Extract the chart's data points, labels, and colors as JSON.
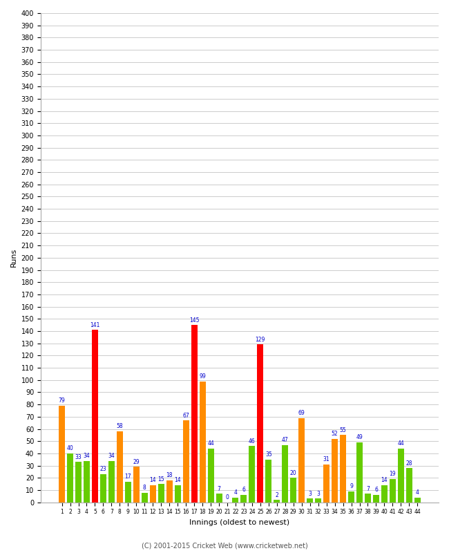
{
  "innings": [
    1,
    2,
    3,
    4,
    5,
    6,
    7,
    8,
    9,
    10,
    11,
    12,
    13,
    14,
    15,
    16,
    17,
    18,
    19,
    20,
    21,
    22,
    23,
    24,
    25,
    26,
    27,
    28,
    29,
    30,
    31,
    32,
    33,
    34,
    35,
    36,
    37,
    38,
    39,
    40,
    41,
    42,
    43,
    44
  ],
  "scores": [
    79,
    40,
    33,
    34,
    141,
    23,
    34,
    58,
    17,
    29,
    8,
    14,
    15,
    18,
    14,
    67,
    145,
    99,
    44,
    7,
    0,
    4,
    6,
    46,
    129,
    35,
    2,
    47,
    20,
    69,
    3,
    3,
    31,
    52,
    55,
    9,
    49,
    7,
    6,
    14,
    19,
    44,
    28,
    4
  ],
  "colors": [
    "orange",
    "green",
    "green",
    "green",
    "red",
    "green",
    "green",
    "orange",
    "green",
    "orange",
    "green",
    "orange",
    "green",
    "orange",
    "green",
    "orange",
    "red",
    "orange",
    "green",
    "green",
    "green",
    "green",
    "green",
    "green",
    "red",
    "green",
    "green",
    "green",
    "green",
    "orange",
    "green",
    "green",
    "orange",
    "orange",
    "orange",
    "green",
    "green",
    "green",
    "green",
    "green",
    "green",
    "green",
    "green",
    "green"
  ],
  "xlabel": "Innings (oldest to newest)",
  "ylabel": "Runs",
  "ylim": [
    0,
    400
  ],
  "ytick_step": 10,
  "footer": "(C) 2001-2015 Cricket Web (www.cricketweb.net)",
  "bg_color": "#ffffff",
  "grid_color": "#cccccc",
  "label_color": "#0000cc",
  "orange_color": "#FF8C00",
  "red_color": "#FF0000",
  "green_color": "#66CC00",
  "bar_width": 0.75,
  "fig_width": 6.5,
  "fig_height": 8.0,
  "dpi": 100,
  "ylabel_fontsize": 8,
  "xlabel_fontsize": 8,
  "ytick_fontsize": 7,
  "xtick_fontsize": 5.5,
  "label_fontsize": 5.5,
  "footer_fontsize": 7
}
